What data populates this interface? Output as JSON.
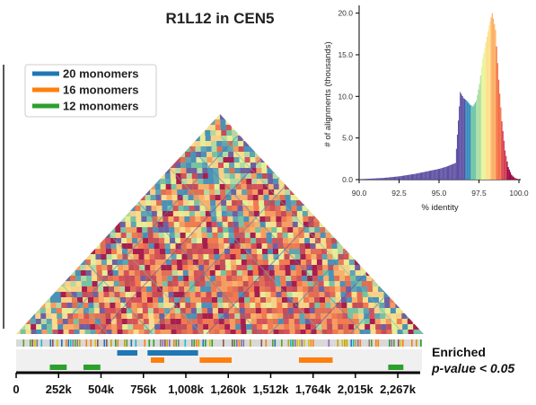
{
  "chart_data": [
    {
      "type": "heatmap",
      "title": "R1L12 in CEN5",
      "legend": [
        {
          "label": "20 monomers",
          "color": "#1f77b4"
        },
        {
          "label": "16 monomers",
          "color": "#ff7f0e"
        },
        {
          "label": "12 monomers",
          "color": "#2ca02c"
        }
      ],
      "x_ticks": [
        "0",
        "252k",
        "504k",
        "756k",
        "1,008k",
        "1,260k",
        "1,512k",
        "1,764k",
        "2,015k",
        "2,267k"
      ],
      "x_tick_values": [
        0,
        252,
        504,
        756,
        1008,
        1260,
        1512,
        1764,
        2015,
        2267
      ],
      "xlim": [
        0,
        2400
      ],
      "enriched_label": "Enriched",
      "pvalue_label": "p-value < 0.05",
      "enriched_tracks": [
        {
          "name": "20 monomers",
          "color": "#1f77b4",
          "segments": [
            [
              600,
              720
            ],
            [
              780,
              1080
            ]
          ]
        },
        {
          "name": "16 monomers",
          "color": "#ff7f0e",
          "segments": [
            [
              800,
              880
            ],
            [
              1090,
              1280
            ],
            [
              1680,
              1880
            ]
          ]
        },
        {
          "name": "12 monomers",
          "color": "#2ca02c",
          "segments": [
            [
              200,
              300
            ],
            [
              400,
              500
            ],
            [
              2210,
              2300
            ]
          ]
        }
      ]
    },
    {
      "type": "bar",
      "xlabel": "% identity",
      "ylabel": "# of alignments (thousands)",
      "xlim": [
        90.0,
        100.0
      ],
      "ylim": [
        0,
        20.5
      ],
      "x_ticks": [
        "90.0",
        "92.5",
        "95.0",
        "97.5",
        "100.0"
      ],
      "x_tick_values": [
        90.0,
        92.5,
        95.0,
        97.5,
        100.0
      ],
      "y_ticks": [
        "0.0",
        "5.0",
        "10.0",
        "15.0",
        "20.0"
      ],
      "y_tick_values": [
        0.0,
        5.0,
        10.0,
        15.0,
        20.0
      ],
      "x": [
        90.0,
        90.5,
        91.0,
        91.5,
        92.0,
        92.5,
        93.0,
        93.5,
        94.0,
        94.5,
        95.0,
        95.5,
        96.0,
        96.3,
        96.5,
        96.7,
        96.9,
        97.1,
        97.3,
        97.5,
        97.7,
        97.9,
        98.1,
        98.3,
        98.5,
        98.7,
        98.9,
        99.1,
        99.3,
        99.5,
        99.7,
        100.0
      ],
      "values": [
        0.05,
        0.1,
        0.15,
        0.2,
        0.3,
        0.4,
        0.55,
        0.7,
        0.9,
        1.1,
        1.3,
        1.6,
        2.0,
        10.5,
        9.8,
        9.5,
        9.0,
        8.8,
        9.5,
        11.5,
        14.5,
        16.5,
        18.5,
        20.0,
        18.0,
        12.0,
        7.0,
        3.5,
        1.5,
        0.6,
        0.2,
        0.0
      ]
    }
  ]
}
